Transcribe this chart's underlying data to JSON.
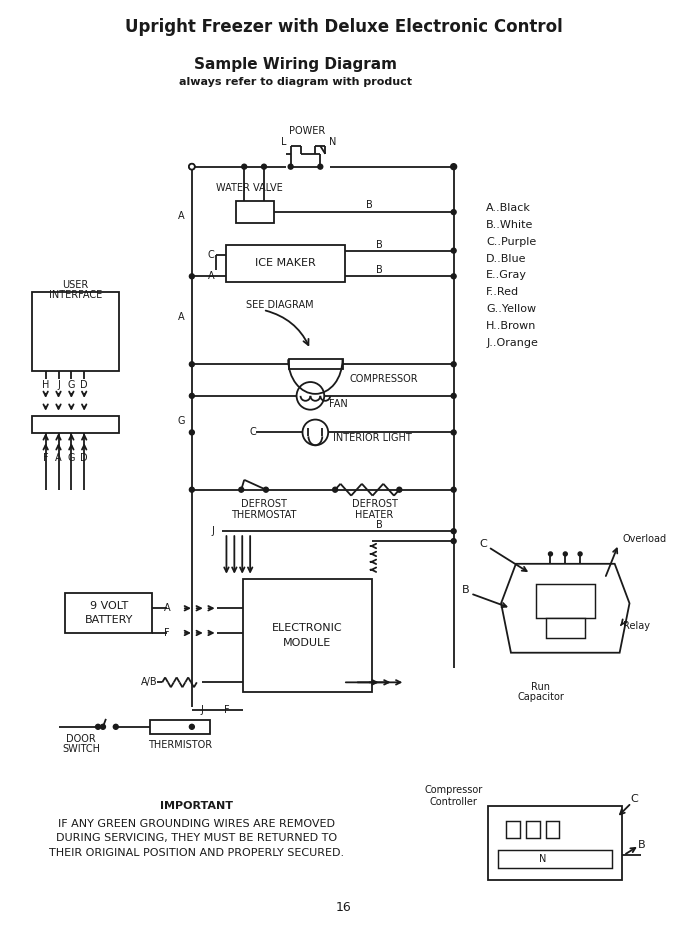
{
  "title": "Upright Freezer with Deluxe Electronic Control",
  "subtitle": "Sample Wiring Diagram",
  "subtitle2": "always refer to diagram with product",
  "page_number": "16",
  "important_text": [
    "IMPORTANT",
    "IF ANY GREEN GROUNDING WIRES ARE REMOVED",
    "DURING SERVICING, THEY MUST BE RETURNED TO",
    "THEIR ORIGINAL POSITION AND PROPERLY SECURED."
  ],
  "legend": [
    "A..Black",
    "B..White",
    "C..Purple",
    "D..Blue",
    "E..Gray",
    "F..Red",
    "G..Yellow",
    "H..Brown",
    "J..Orange"
  ],
  "background_color": "#ffffff",
  "line_color": "#1a1a1a"
}
